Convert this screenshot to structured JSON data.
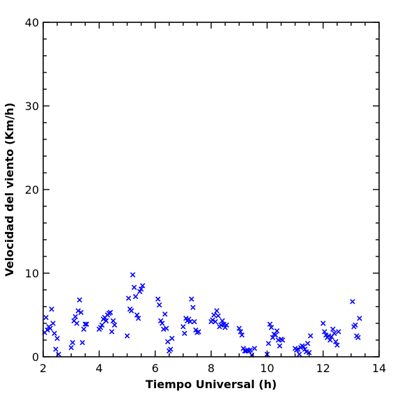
{
  "chart_data": {
    "type": "scatter",
    "title": "",
    "xlabel": "Tiempo Universal (h)",
    "ylabel": "Velocidad del viento (Km/h)",
    "xlim": [
      2,
      14
    ],
    "ylim": [
      0,
      40
    ],
    "xticks": [
      2,
      4,
      6,
      8,
      10,
      12,
      14
    ],
    "yticks": [
      0,
      10,
      20,
      30,
      40
    ],
    "xtick_labels": [
      "2",
      "4",
      "6",
      "8",
      "10",
      "12",
      "14"
    ],
    "ytick_labels": [
      "0",
      "10",
      "20",
      "30",
      "40"
    ],
    "x_minor_step": 0.5,
    "y_minor_step": 2,
    "grid": false,
    "marker": "x",
    "color": "#0000ff",
    "series": [
      {
        "points": [
          [
            2.05,
            2.9
          ],
          [
            2.1,
            4.7
          ],
          [
            2.15,
            3.2
          ],
          [
            2.2,
            3.6
          ],
          [
            2.25,
            3.4
          ],
          [
            2.3,
            5.7
          ],
          [
            2.35,
            4.0
          ],
          [
            2.4,
            2.8
          ],
          [
            2.45,
            0.9
          ],
          [
            2.5,
            2.2
          ],
          [
            2.55,
            0.3
          ],
          [
            3.0,
            1.1
          ],
          [
            3.05,
            1.7
          ],
          [
            3.1,
            4.3
          ],
          [
            3.15,
            4.8
          ],
          [
            3.2,
            4.0
          ],
          [
            3.25,
            5.5
          ],
          [
            3.3,
            6.8
          ],
          [
            3.35,
            5.3
          ],
          [
            3.4,
            1.7
          ],
          [
            3.45,
            3.3
          ],
          [
            3.5,
            3.9
          ],
          [
            3.55,
            3.9
          ],
          [
            4.0,
            3.3
          ],
          [
            4.05,
            3.5
          ],
          [
            4.1,
            3.8
          ],
          [
            4.15,
            4.5
          ],
          [
            4.2,
            4.7
          ],
          [
            4.25,
            4.3
          ],
          [
            4.3,
            5.0
          ],
          [
            4.35,
            5.2
          ],
          [
            4.4,
            5.3
          ],
          [
            4.45,
            3.0
          ],
          [
            4.5,
            4.3
          ],
          [
            4.55,
            3.8
          ],
          [
            5.0,
            2.5
          ],
          [
            5.05,
            7.0
          ],
          [
            5.1,
            5.7
          ],
          [
            5.15,
            5.5
          ],
          [
            5.2,
            9.8
          ],
          [
            5.25,
            8.3
          ],
          [
            5.3,
            7.2
          ],
          [
            5.35,
            5.0
          ],
          [
            5.4,
            4.6
          ],
          [
            5.45,
            7.8
          ],
          [
            5.5,
            8.1
          ],
          [
            5.55,
            8.5
          ],
          [
            6.1,
            6.9
          ],
          [
            6.15,
            6.2
          ],
          [
            6.2,
            4.3
          ],
          [
            6.25,
            4.0
          ],
          [
            6.3,
            3.3
          ],
          [
            6.35,
            5.1
          ],
          [
            6.4,
            3.4
          ],
          [
            6.45,
            1.8
          ],
          [
            6.5,
            0.7
          ],
          [
            6.55,
            0.9
          ],
          [
            6.6,
            2.2
          ],
          [
            7.0,
            3.6
          ],
          [
            7.05,
            2.8
          ],
          [
            7.1,
            4.6
          ],
          [
            7.15,
            4.3
          ],
          [
            7.2,
            4.5
          ],
          [
            7.25,
            4.2
          ],
          [
            7.3,
            6.9
          ],
          [
            7.35,
            5.9
          ],
          [
            7.4,
            4.2
          ],
          [
            7.45,
            3.2
          ],
          [
            7.5,
            2.9
          ],
          [
            7.55,
            3.0
          ],
          [
            8.0,
            4.2
          ],
          [
            8.05,
            4.4
          ],
          [
            8.1,
            5.0
          ],
          [
            8.15,
            4.2
          ],
          [
            8.2,
            5.5
          ],
          [
            8.25,
            4.9
          ],
          [
            8.3,
            3.6
          ],
          [
            8.35,
            3.8
          ],
          [
            8.4,
            4.3
          ],
          [
            8.45,
            3.9
          ],
          [
            8.5,
            3.5
          ],
          [
            8.55,
            3.8
          ],
          [
            9.0,
            3.4
          ],
          [
            9.05,
            3.0
          ],
          [
            9.1,
            2.6
          ],
          [
            9.15,
            1.0
          ],
          [
            9.2,
            0.7
          ],
          [
            9.25,
            0.7
          ],
          [
            9.3,
            0.8
          ],
          [
            9.35,
            0.7
          ],
          [
            9.4,
            0.8
          ],
          [
            9.45,
            0.2
          ],
          [
            9.55,
            1.0
          ],
          [
            10.0,
            0.3
          ],
          [
            10.05,
            1.6
          ],
          [
            10.1,
            3.9
          ],
          [
            10.15,
            3.5
          ],
          [
            10.2,
            2.3
          ],
          [
            10.25,
            2.7
          ],
          [
            10.3,
            2.6
          ],
          [
            10.35,
            3.1
          ],
          [
            10.4,
            2.0
          ],
          [
            10.45,
            1.3
          ],
          [
            10.5,
            2.1
          ],
          [
            10.55,
            2.0
          ],
          [
            11.0,
            1.0
          ],
          [
            11.05,
            0.8
          ],
          [
            11.1,
            0.9
          ],
          [
            11.15,
            0.3
          ],
          [
            11.2,
            1.1
          ],
          [
            11.25,
            1.3
          ],
          [
            11.3,
            1.2
          ],
          [
            11.35,
            0.9
          ],
          [
            11.4,
            0.6
          ],
          [
            11.45,
            1.6
          ],
          [
            11.5,
            0.5
          ],
          [
            11.55,
            2.5
          ],
          [
            12.0,
            4.0
          ],
          [
            12.05,
            3.0
          ],
          [
            12.1,
            2.6
          ],
          [
            12.15,
            2.3
          ],
          [
            12.2,
            2.5
          ],
          [
            12.25,
            2.0
          ],
          [
            12.3,
            2.4
          ],
          [
            12.35,
            3.3
          ],
          [
            12.4,
            2.8
          ],
          [
            12.45,
            1.8
          ],
          [
            12.5,
            1.4
          ],
          [
            12.55,
            3.0
          ],
          [
            13.05,
            6.6
          ],
          [
            13.1,
            3.6
          ],
          [
            13.15,
            3.8
          ],
          [
            13.2,
            2.5
          ],
          [
            13.25,
            2.3
          ],
          [
            13.3,
            4.6
          ]
        ]
      }
    ]
  }
}
